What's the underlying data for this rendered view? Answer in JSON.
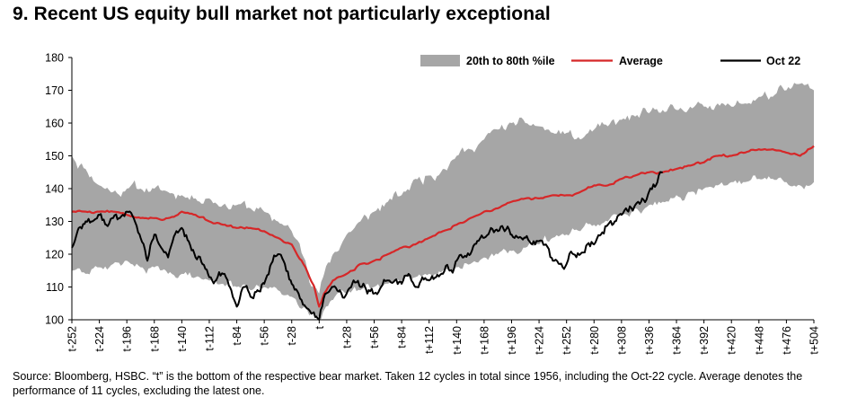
{
  "title": "9. Recent US equity bull market not particularly exceptional",
  "source": "Source: Bloomberg, HSBC. “t” is the bottom of the respective bear market. Taken 12 cycles in total since 1956, including the Oct-22 cycle. Average denotes the performance of 11 cycles, excluding the latest one.",
  "chart_data": {
    "type": "line",
    "title": "9. Recent US equity bull market not particularly exceptional",
    "xlabel": "",
    "ylabel": "",
    "xlim": [
      -252,
      504
    ],
    "ylim": [
      100,
      180
    ],
    "yticks": [
      100,
      110,
      120,
      130,
      140,
      150,
      160,
      170,
      180
    ],
    "xtick_values": [
      -252,
      -224,
      -196,
      -168,
      -140,
      -112,
      -84,
      -56,
      -28,
      0,
      28,
      56,
      84,
      112,
      140,
      168,
      196,
      224,
      252,
      280,
      308,
      336,
      364,
      392,
      420,
      448,
      476,
      504
    ],
    "xtick_labels": [
      "t-252",
      "t-224",
      "t-196",
      "t-168",
      "t-140",
      "t-112",
      "t-84",
      "t-56",
      "t-28",
      "t",
      "t+28",
      "t+56",
      "t+84",
      "t+112",
      "t+140",
      "t+168",
      "t+196",
      "t+224",
      "t+252",
      "t+280",
      "t+308",
      "t+336",
      "t+364",
      "t+392",
      "t+420",
      "t+448",
      "t+476",
      "t+504"
    ],
    "legend_position": "top-right",
    "colors": {
      "band": "#a6a6a6",
      "average": "#d62728",
      "oct22": "#000000",
      "axis": "#000000"
    },
    "band": {
      "name": "20th to 80th %ile",
      "x": [
        -252,
        -238,
        -224,
        -210,
        -196,
        -182,
        -168,
        -154,
        -140,
        -126,
        -112,
        -98,
        -84,
        -70,
        -56,
        -42,
        -28,
        -14,
        -5,
        0,
        5,
        14,
        28,
        42,
        56,
        70,
        84,
        98,
        112,
        126,
        140,
        154,
        168,
        182,
        196,
        210,
        224,
        238,
        252,
        266,
        280,
        294,
        308,
        322,
        336,
        350,
        364,
        378,
        392,
        406,
        420,
        434,
        448,
        462,
        476,
        490,
        504
      ],
      "low": [
        115,
        114,
        116,
        117,
        118,
        116,
        116,
        114,
        114,
        113,
        112,
        111,
        110,
        109,
        110,
        109,
        107,
        104,
        102,
        101,
        103,
        106,
        108,
        109,
        110,
        111,
        112,
        113,
        114,
        115,
        116,
        117,
        119,
        120,
        121,
        122,
        123,
        125,
        126,
        127,
        129,
        130,
        132,
        134,
        135,
        136,
        138,
        139,
        140,
        141,
        142,
        142,
        143,
        143,
        142,
        141,
        142
      ],
      "high": [
        150,
        146,
        141,
        139,
        140,
        140,
        140,
        139,
        138,
        137,
        137,
        135,
        135,
        134,
        133,
        130,
        127,
        118,
        110,
        108,
        114,
        120,
        126,
        130,
        133,
        136,
        138,
        143,
        144,
        146,
        150,
        152,
        155,
        158,
        160,
        160,
        159,
        157,
        157,
        155,
        158,
        159,
        161,
        162,
        163,
        164,
        164,
        165,
        165,
        166,
        165,
        166,
        168,
        168,
        170,
        172,
        170
      ]
    },
    "series": [
      {
        "name": "Average",
        "x": [
          -252,
          -238,
          -224,
          -210,
          -196,
          -182,
          -168,
          -154,
          -140,
          -126,
          -112,
          -98,
          -84,
          -70,
          -56,
          -42,
          -28,
          -14,
          -5,
          0,
          5,
          14,
          28,
          42,
          56,
          70,
          84,
          98,
          112,
          126,
          140,
          154,
          168,
          182,
          196,
          210,
          224,
          238,
          252,
          266,
          280,
          294,
          308,
          322,
          336,
          350,
          364,
          378,
          392,
          406,
          420,
          434,
          448,
          462,
          476,
          490,
          504
        ],
        "values": [
          133,
          133,
          133,
          133,
          132,
          131,
          131,
          131,
          133,
          132,
          130,
          129,
          128,
          128,
          127,
          125,
          123,
          116,
          110,
          104,
          108,
          112,
          114,
          117,
          118,
          120,
          122,
          123,
          125,
          127,
          129,
          131,
          133,
          134,
          136,
          137,
          137,
          138,
          138,
          139,
          141,
          141,
          143,
          144,
          145,
          145,
          146,
          147,
          148,
          150,
          150,
          151,
          152,
          152,
          151,
          150,
          153
        ]
      },
      {
        "name": "Oct 22",
        "x": [
          -252,
          -245,
          -238,
          -231,
          -224,
          -217,
          -210,
          -203,
          -196,
          -189,
          -182,
          -175,
          -168,
          -161,
          -154,
          -147,
          -140,
          -133,
          -126,
          -119,
          -112,
          -105,
          -98,
          -91,
          -84,
          -77,
          -70,
          -63,
          -56,
          -49,
          -42,
          -35,
          -28,
          -21,
          -14,
          -7,
          -3,
          0,
          3,
          7,
          14,
          21,
          28,
          35,
          42,
          49,
          56,
          63,
          70,
          77,
          84,
          91,
          98,
          105,
          112,
          119,
          126,
          133,
          140,
          147,
          154,
          161,
          168,
          175,
          182,
          189,
          196,
          203,
          210,
          217,
          224,
          231,
          238,
          245,
          252,
          259,
          266,
          273,
          280,
          287,
          294,
          301,
          308,
          315,
          322,
          329,
          336,
          343,
          350
        ],
        "values": [
          122,
          128,
          130,
          130,
          132,
          129,
          131,
          131,
          133,
          131,
          125,
          118,
          126,
          122,
          119,
          126,
          128,
          124,
          119,
          117,
          113,
          112,
          114,
          110,
          104,
          110,
          107,
          109,
          111,
          117,
          120,
          117,
          111,
          108,
          104,
          102,
          101,
          100,
          104,
          108,
          110,
          109,
          108,
          112,
          110,
          108,
          108,
          110,
          112,
          112,
          111,
          114,
          110,
          113,
          112,
          113,
          114,
          115,
          118,
          119,
          120,
          124,
          125,
          128,
          127,
          127,
          126,
          125,
          125,
          123,
          124,
          123,
          118,
          117,
          117,
          120,
          120,
          123,
          123,
          126,
          129,
          130,
          132,
          133,
          135,
          137,
          139,
          141,
          145
        ]
      }
    ]
  }
}
